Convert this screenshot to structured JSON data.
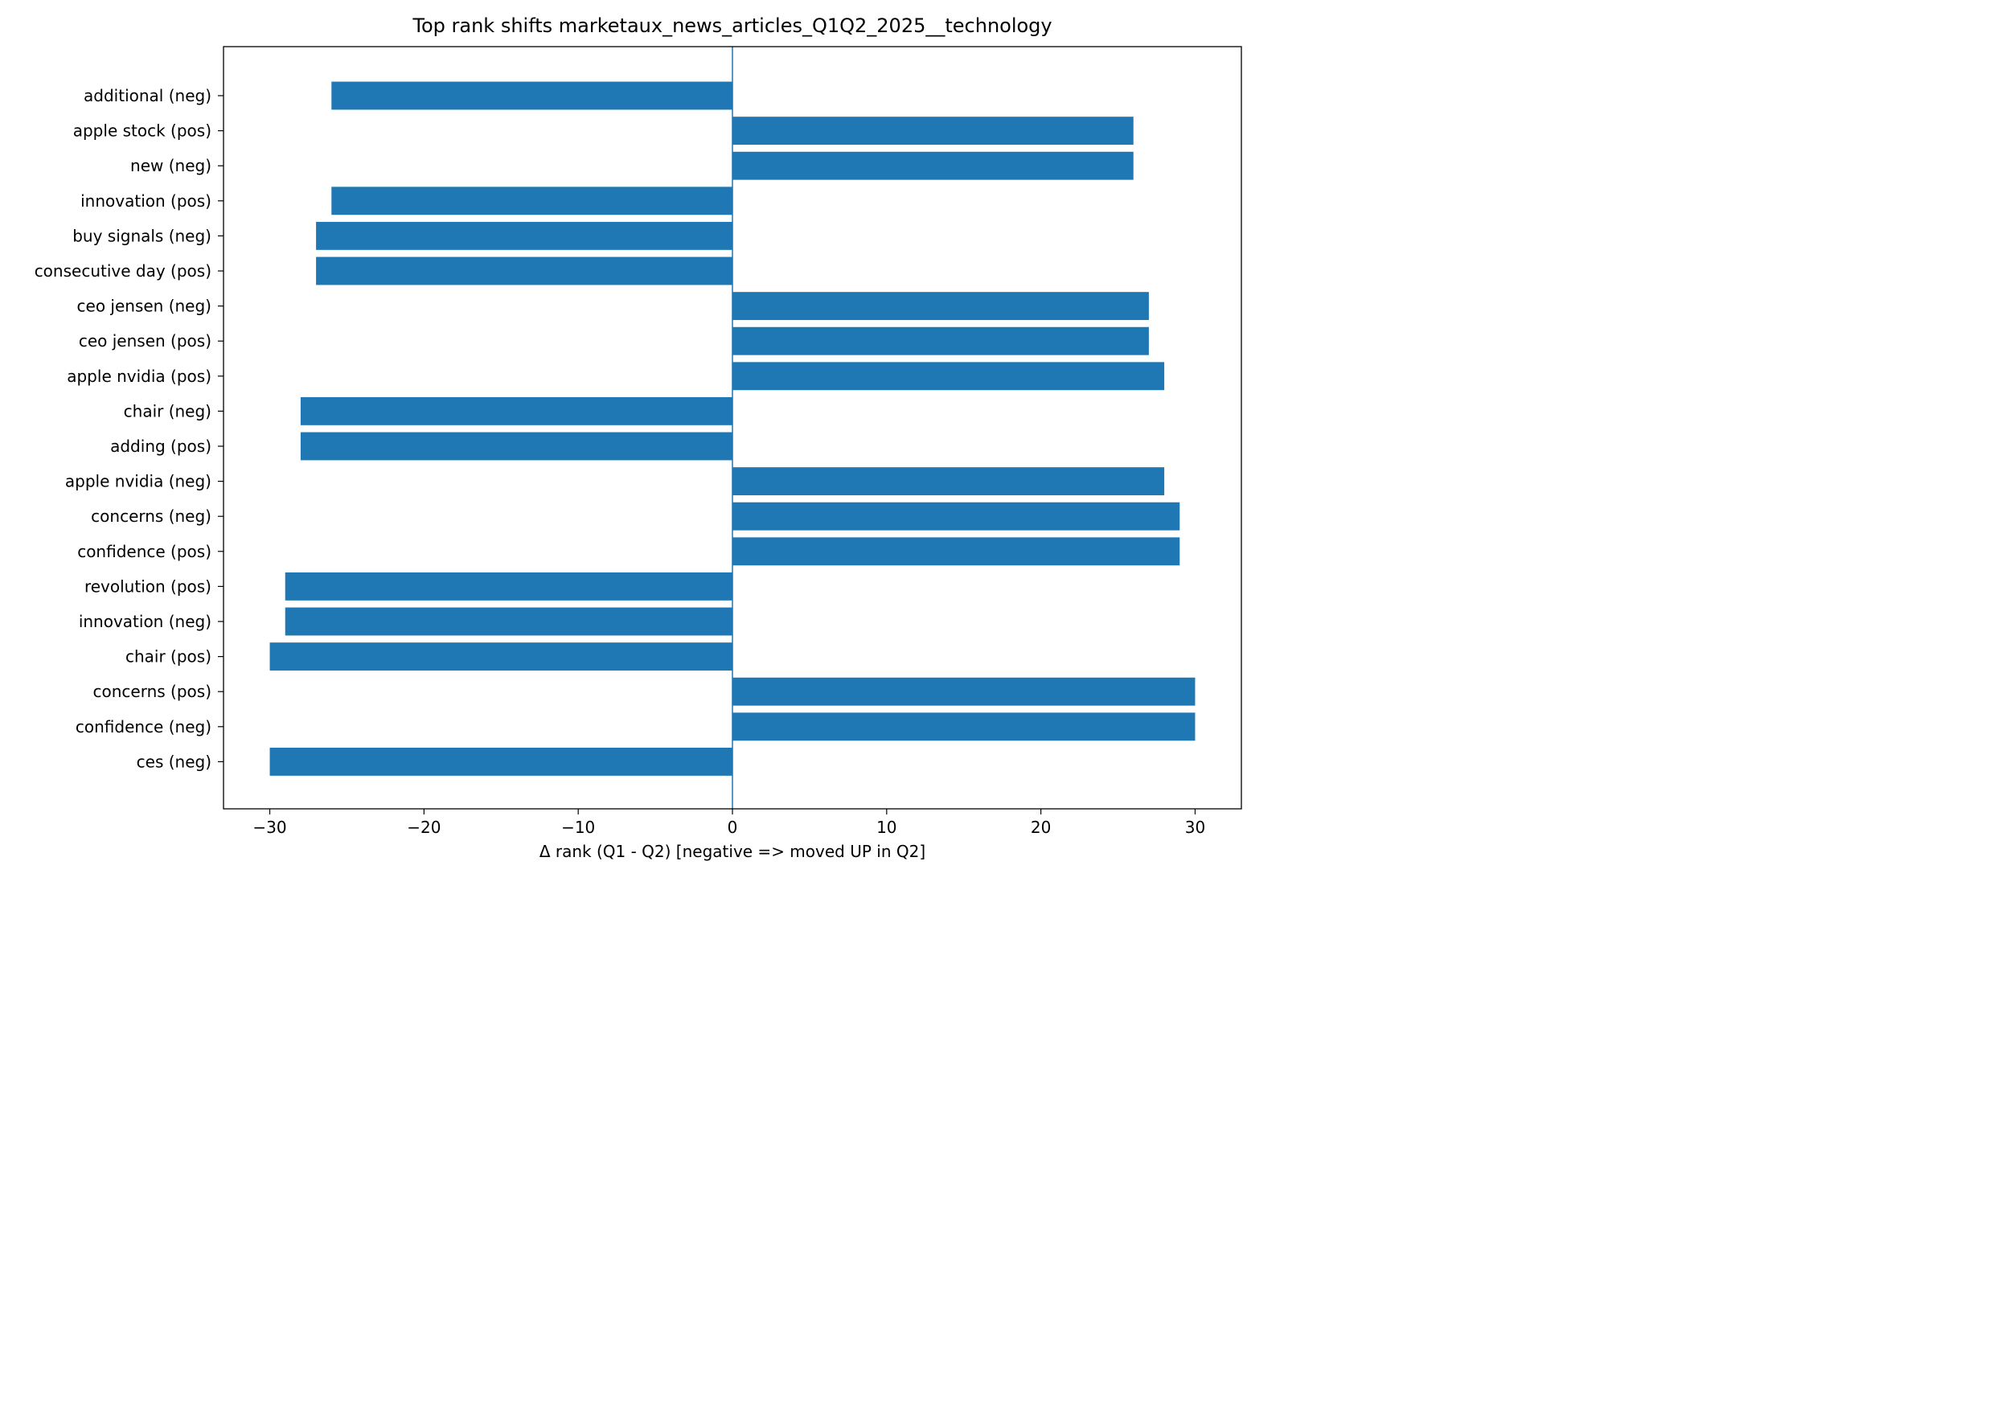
{
  "chart_data": {
    "type": "bar",
    "orientation": "horizontal",
    "title": "Top rank shifts marketaux_news_articles_Q1Q2_2025__technology",
    "xlabel": "Δ rank (Q1 - Q2)  [negative => moved UP in Q2]",
    "ylabel": "",
    "xlim": [
      -33,
      33
    ],
    "xticks": [
      -30,
      -20,
      -10,
      0,
      10,
      20,
      30
    ],
    "xtick_labels": [
      "−30",
      "−20",
      "−10",
      "0",
      "10",
      "20",
      "30"
    ],
    "grid": false,
    "zero_line": true,
    "bar_color": "#1f77b4",
    "categories": [
      "additional (neg)",
      "apple stock (pos)",
      "new (neg)",
      "innovation (pos)",
      "buy signals (neg)",
      "consecutive day (pos)",
      "ceo jensen (neg)",
      "ceo jensen (pos)",
      "apple nvidia (pos)",
      "chair (neg)",
      "adding (pos)",
      "apple nvidia (neg)",
      "concerns (neg)",
      "confidence (pos)",
      "revolution (pos)",
      "innovation (neg)",
      "chair (pos)",
      "concerns (pos)",
      "confidence (neg)",
      "ces (neg)"
    ],
    "values": [
      -26,
      26,
      26,
      -26,
      -27,
      -27,
      27,
      27,
      28,
      -28,
      -28,
      28,
      29,
      29,
      -29,
      -29,
      -30,
      30,
      30,
      -30
    ]
  }
}
